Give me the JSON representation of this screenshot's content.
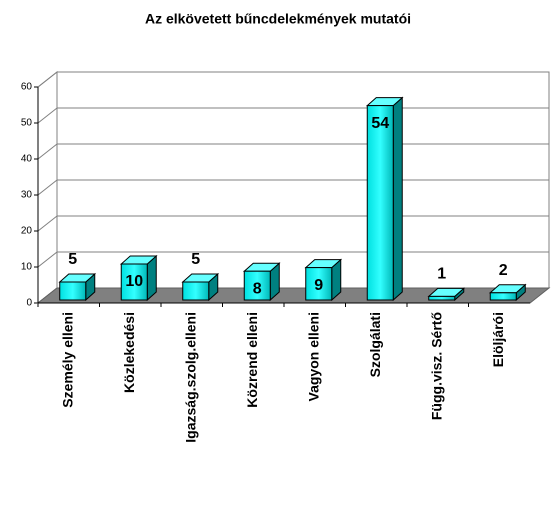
{
  "chart_data": {
    "type": "bar3d",
    "title": "Az elkövetett bűncdelekmények mutatói",
    "categories": [
      "Személy elleni",
      "Közlekedési",
      "Igazság.szolg.elleni",
      "Közrend elleni",
      "Vagyon elleni",
      "Szolgálati",
      "Függ.visz. Sértő",
      "Elöljárói"
    ],
    "values": [
      5,
      10,
      5,
      8,
      9,
      54,
      1,
      2
    ],
    "color": "#00cccc",
    "ylim": [
      0,
      60
    ],
    "yticks": [
      0,
      10,
      20,
      30,
      40,
      50,
      60
    ],
    "grid": true
  }
}
